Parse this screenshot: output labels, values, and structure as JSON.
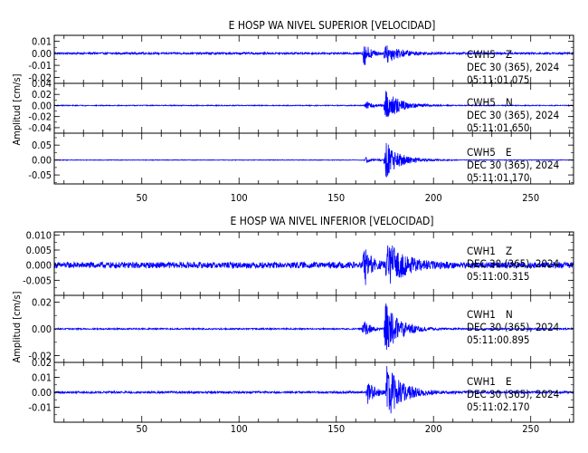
{
  "figure": {
    "trace_color": "#0000ff"
  },
  "chart_data": [
    {
      "type": "line",
      "title": "E HOSP WA NIVEL SUPERIOR [VELOCIDAD]",
      "ylabel": "Amplitud [cm/s]",
      "xlim": [
        5,
        272
      ],
      "x_ticks": [
        50,
        100,
        150,
        200,
        250
      ],
      "subplots": [
        {
          "station": "CWH5",
          "component": "Z",
          "date": "DEC 30 (365), 2024",
          "time": "05:11:01.075",
          "ylim": [
            -0.025,
            0.015
          ],
          "y_ticks": [
            -0.02,
            -0.01,
            0.0,
            0.01
          ],
          "y_tick_labels": [
            "-0.02",
            "-0.01",
            "0.00",
            "0.01"
          ],
          "noise_amplitude": 0.0008,
          "events": [
            {
              "x": 164,
              "amplitude": 0.012,
              "decay": 3
            },
            {
              "x": 175,
              "amplitude": 0.009,
              "decay": 7
            }
          ]
        },
        {
          "station": "CWH5",
          "component": "N",
          "date": "DEC 30 (365), 2024",
          "time": "05:11:01.650",
          "ylim": [
            -0.05,
            0.04
          ],
          "y_ticks": [
            -0.04,
            -0.02,
            0.0,
            0.02,
            0.04
          ],
          "y_tick_labels": [
            "-0.04",
            "-0.02",
            "0.00",
            "0.02",
            "0.04"
          ],
          "noise_amplitude": 0.0008,
          "events": [
            {
              "x": 165,
              "amplitude": 0.008,
              "decay": 4
            },
            {
              "x": 175,
              "amplitude": 0.03,
              "decay": 7
            }
          ]
        },
        {
          "station": "CWH5",
          "component": "E",
          "date": "DEC 30 (365), 2024",
          "time": "05:11:01.170",
          "ylim": [
            -0.08,
            0.09
          ],
          "y_ticks": [
            -0.05,
            0.0,
            0.05
          ],
          "y_tick_labels": [
            "-0.05",
            "0.00",
            "0.05"
          ],
          "noise_amplitude": 0.001,
          "events": [
            {
              "x": 165,
              "amplitude": 0.01,
              "decay": 4
            },
            {
              "x": 175,
              "amplitude": 0.065,
              "decay": 7
            }
          ]
        }
      ]
    },
    {
      "type": "line",
      "title": "E HOSP WA NIVEL INFERIOR [VELOCIDAD]",
      "ylabel": "Amplitud [cm/s]",
      "xlim": [
        5,
        272
      ],
      "x_ticks": [
        50,
        100,
        150,
        200,
        250
      ],
      "subplots": [
        {
          "station": "CWH1",
          "component": "Z",
          "date": "DEC 30 (365), 2024",
          "time": "05:11:00.315",
          "ylim": [
            -0.01,
            0.011
          ],
          "y_ticks": [
            -0.005,
            0.0,
            0.005,
            0.01
          ],
          "y_tick_labels": [
            "-0.005",
            "0.000",
            "0.005",
            "0.010"
          ],
          "noise_amplitude": 0.001,
          "events": [
            {
              "x": 164,
              "amplitude": 0.009,
              "decay": 3
            },
            {
              "x": 176,
              "amplitude": 0.008,
              "decay": 8
            }
          ]
        },
        {
          "station": "CWH1",
          "component": "N",
          "date": "DEC 30 (365), 2024",
          "time": "05:11:00.895",
          "ylim": [
            -0.025,
            0.025
          ],
          "y_ticks": [
            -0.02,
            0.0,
            0.02
          ],
          "y_tick_labels": [
            "-0.02",
            "0.00",
            "0.02"
          ],
          "noise_amplitude": 0.0005,
          "events": [
            {
              "x": 164,
              "amplitude": 0.008,
              "decay": 3
            },
            {
              "x": 175,
              "amplitude": 0.02,
              "decay": 7
            }
          ]
        },
        {
          "station": "CWH1",
          "component": "E",
          "date": "DEC 30 (365), 2024",
          "time": "05:11:02.170",
          "ylim": [
            -0.02,
            0.02
          ],
          "y_ticks": [
            -0.01,
            0.0,
            0.01,
            0.02
          ],
          "y_tick_labels": [
            "-0.01",
            "0.00",
            "0.01",
            "0.02"
          ],
          "noise_amplitude": 0.0007,
          "events": [
            {
              "x": 166,
              "amplitude": 0.008,
              "decay": 4
            },
            {
              "x": 176,
              "amplitude": 0.017,
              "decay": 8
            }
          ]
        }
      ]
    }
  ]
}
